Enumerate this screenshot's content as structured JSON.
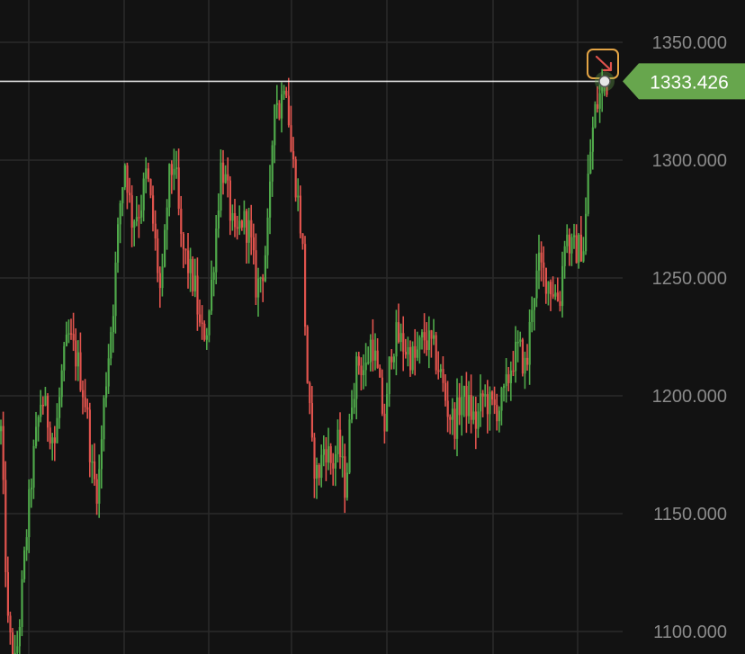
{
  "chart_data": {
    "type": "candlestick",
    "ylim": [
      1090,
      1360
    ],
    "y_ticks": [
      "1100.000",
      "1150.000",
      "1200.000",
      "1250.000",
      "1300.000",
      "1350.000"
    ],
    "grid": true,
    "current_price": {
      "value": 1333.426,
      "label": "1333.426"
    },
    "trend_marker": {
      "icon": "arrow-down-right-icon"
    },
    "colors": {
      "background": "#121212",
      "grid": "#2a2a2a",
      "up": "#4fa84a",
      "down": "#e0534d",
      "price_tag": "#67a64d",
      "marker": "#e3a445",
      "price_line": "#ffffff"
    },
    "price_path": [
      [
        0,
        1185
      ],
      [
        8,
        1100
      ],
      [
        16,
        1085
      ],
      [
        22,
        1110
      ],
      [
        28,
        1140
      ],
      [
        35,
        1170
      ],
      [
        45,
        1200
      ],
      [
        52,
        1190
      ],
      [
        60,
        1180
      ],
      [
        68,
        1210
      ],
      [
        75,
        1225
      ],
      [
        85,
        1215
      ],
      [
        95,
        1195
      ],
      [
        102,
        1165
      ],
      [
        108,
        1160
      ],
      [
        115,
        1200
      ],
      [
        125,
        1240
      ],
      [
        132,
        1280
      ],
      [
        138,
        1300
      ],
      [
        145,
        1275
      ],
      [
        155,
        1280
      ],
      [
        162,
        1295
      ],
      [
        170,
        1270
      ],
      [
        178,
        1240
      ],
      [
        186,
        1290
      ],
      [
        193,
        1300
      ],
      [
        200,
        1265
      ],
      [
        208,
        1255
      ],
      [
        216,
        1245
      ],
      [
        222,
        1225
      ],
      [
        230,
        1230
      ],
      [
        238,
        1265
      ],
      [
        245,
        1300
      ],
      [
        252,
        1285
      ],
      [
        260,
        1265
      ],
      [
        268,
        1275
      ],
      [
        276,
        1270
      ],
      [
        284,
        1245
      ],
      [
        292,
        1255
      ],
      [
        298,
        1275
      ],
      [
        304,
        1330
      ],
      [
        310,
        1320
      ],
      [
        316,
        1340
      ],
      [
        322,
        1305
      ],
      [
        328,
        1290
      ],
      [
        335,
        1265
      ],
      [
        340,
        1210
      ],
      [
        346,
        1175
      ],
      [
        352,
        1165
      ],
      [
        360,
        1180
      ],
      [
        368,
        1170
      ],
      [
        375,
        1180
      ],
      [
        383,
        1160
      ],
      [
        390,
        1200
      ],
      [
        397,
        1215
      ],
      [
        405,
        1210
      ],
      [
        412,
        1225
      ],
      [
        420,
        1205
      ],
      [
        427,
        1185
      ],
      [
        433,
        1220
      ],
      [
        440,
        1225
      ],
      [
        450,
        1220
      ],
      [
        460,
        1215
      ],
      [
        470,
        1225
      ],
      [
        480,
        1220
      ],
      [
        488,
        1210
      ],
      [
        496,
        1195
      ],
      [
        504,
        1188
      ],
      [
        512,
        1200
      ],
      [
        520,
        1195
      ],
      [
        528,
        1188
      ],
      [
        536,
        1200
      ],
      [
        545,
        1195
      ],
      [
        553,
        1195
      ],
      [
        560,
        1200
      ],
      [
        568,
        1215
      ],
      [
        576,
        1220
      ],
      [
        584,
        1210
      ],
      [
        590,
        1240
      ],
      [
        598,
        1255
      ],
      [
        606,
        1250
      ],
      [
        614,
        1245
      ],
      [
        621,
        1240
      ],
      [
        627,
        1270
      ],
      [
        633,
        1262
      ],
      [
        640,
        1262
      ],
      [
        648,
        1264
      ],
      [
        654,
        1300
      ],
      [
        660,
        1320
      ],
      [
        666,
        1328
      ],
      [
        672,
        1333
      ]
    ]
  }
}
